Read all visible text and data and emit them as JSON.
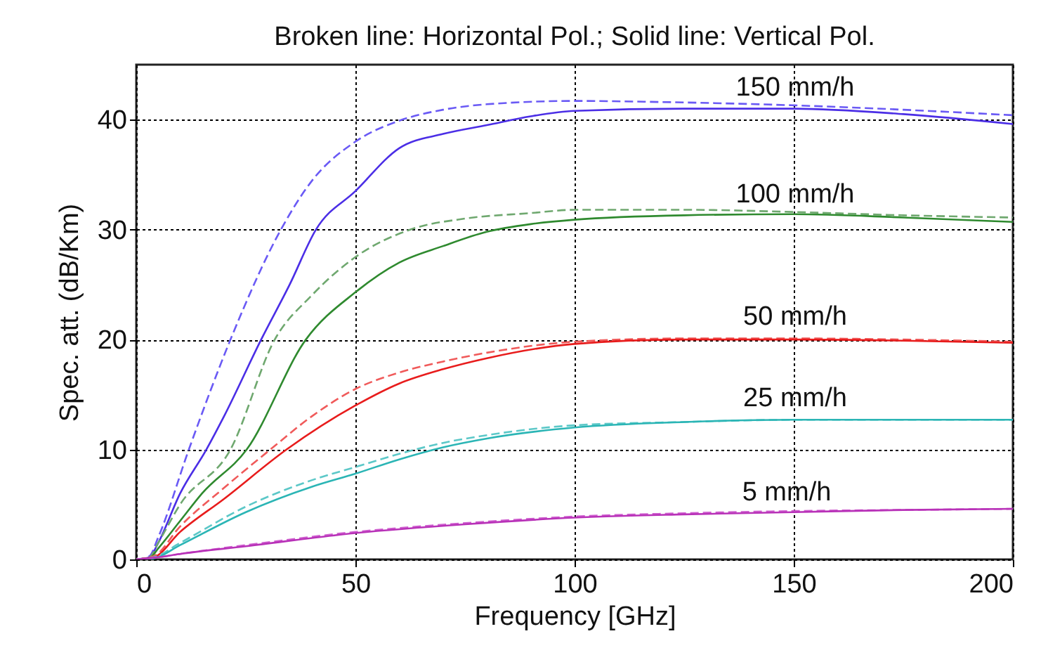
{
  "chart_data": {
    "type": "line",
    "title": "Broken line: Horizontal Pol.; Solid line: Vertical Pol.",
    "xlabel": "Frequency [GHz]",
    "ylabel": "Spec. att. (dB/Km)",
    "xlim": [
      0,
      200
    ],
    "xticks": [
      0,
      50,
      100,
      150,
      200
    ],
    "ylim": [
      0,
      45
    ],
    "yticks": [
      0,
      10,
      20,
      30,
      40
    ],
    "grid": true,
    "series": [
      {
        "color": "#6a5af5",
        "line_style": "dashed",
        "x": [
          0,
          3,
          5,
          12,
          21.5,
          33,
          40,
          50,
          60,
          70,
          80,
          100,
          120,
          150,
          175,
          200
        ],
        "values": [
          0,
          0.3,
          2,
          10,
          20,
          30,
          34.4,
          38,
          39.9,
          40.9,
          41.4,
          41.7,
          41.6,
          41.3,
          40.9,
          40.4
        ]
      },
      {
        "color": "#4b2ee6",
        "line_style": "solid",
        "x": [
          0,
          3,
          5,
          10,
          16,
          20,
          28.5,
          35,
          41,
          50,
          60,
          70,
          80,
          90,
          100,
          125,
          150,
          175,
          200
        ],
        "values": [
          0,
          0.2,
          1.5,
          6,
          10,
          13,
          20,
          25,
          30,
          33.5,
          37.4,
          38.7,
          39.5,
          40.3,
          40.8,
          41,
          41,
          40.5,
          39.6
        ]
      },
      {
        "color": "#6fa86f",
        "line_style": "dashed",
        "x": [
          0,
          3,
          5,
          10,
          21.5,
          31.6,
          40,
          50,
          62.5,
          75,
          90,
          100,
          125,
          150,
          175,
          200
        ],
        "values": [
          0,
          0.2,
          1.5,
          5,
          10,
          20,
          24,
          27.5,
          30,
          31,
          31.5,
          31.8,
          31.8,
          31.6,
          31.3,
          31.1
        ]
      },
      {
        "color": "#2f8a2f",
        "line_style": "solid",
        "x": [
          0,
          3,
          5,
          10,
          15,
          25.2,
          38.7,
          50,
          60,
          70,
          80,
          90,
          100,
          125,
          150,
          175,
          200
        ],
        "values": [
          0,
          0.1,
          1,
          3.5,
          6,
          10,
          20,
          24.3,
          27,
          28.5,
          29.8,
          30.5,
          30.9,
          31.3,
          31.4,
          31.1,
          30.7
        ]
      },
      {
        "color": "#f05a5a",
        "line_style": "dashed",
        "x": [
          0,
          4,
          10,
          20,
          30.6,
          40,
          50,
          60,
          70,
          80,
          100,
          125,
          150,
          175,
          200
        ],
        "values": [
          0,
          0.3,
          3,
          6.5,
          10,
          13,
          15.5,
          17,
          18,
          18.8,
          19.8,
          20.1,
          20.1,
          20,
          19.8
        ]
      },
      {
        "color": "#e81c1c",
        "line_style": "solid",
        "x": [
          0,
          4,
          10,
          20,
          34.3,
          50,
          60,
          70,
          80,
          100,
          125,
          150,
          175,
          200
        ],
        "values": [
          0,
          0.2,
          2.5,
          5.5,
          10,
          14,
          16,
          17.3,
          18.3,
          19.6,
          20,
          20,
          19.9,
          19.7
        ]
      },
      {
        "color": "#5cc8c8",
        "line_style": "dashed",
        "x": [
          0,
          4,
          10,
          25,
          40,
          50,
          60,
          70,
          80,
          100,
          125,
          150,
          175,
          200
        ],
        "values": [
          0,
          0.2,
          1.5,
          4.8,
          7.2,
          8.4,
          9.6,
          10.6,
          11.3,
          12.2,
          12.5,
          12.7,
          12.7,
          12.7
        ]
      },
      {
        "color": "#2bb5b5",
        "line_style": "solid",
        "x": [
          0,
          4,
          10,
          25,
          40,
          50,
          60,
          70,
          80,
          100,
          125,
          150,
          175,
          200
        ],
        "values": [
          0,
          0.1,
          1.3,
          4.3,
          6.6,
          7.8,
          9.1,
          10.2,
          11,
          12,
          12.5,
          12.7,
          12.7,
          12.7
        ]
      },
      {
        "color": "#d060d0",
        "line_style": "dashed",
        "x": [
          0,
          5,
          10,
          25,
          50,
          75,
          100,
          125,
          150,
          175,
          200
        ],
        "values": [
          0,
          0.2,
          0.5,
          1.3,
          2.5,
          3.3,
          3.9,
          4.2,
          4.4,
          4.5,
          4.6
        ]
      },
      {
        "color": "#b832b8",
        "line_style": "solid",
        "x": [
          0,
          5,
          10,
          25,
          50,
          75,
          100,
          125,
          150,
          175,
          200
        ],
        "values": [
          0,
          0.2,
          0.5,
          1.2,
          2.4,
          3.2,
          3.8,
          4.1,
          4.3,
          4.5,
          4.6
        ]
      }
    ],
    "annotations": [
      "150 mm/h",
      "100 mm/h",
      "50 mm/h",
      "25 mm/h",
      "5 mm/h"
    ]
  }
}
